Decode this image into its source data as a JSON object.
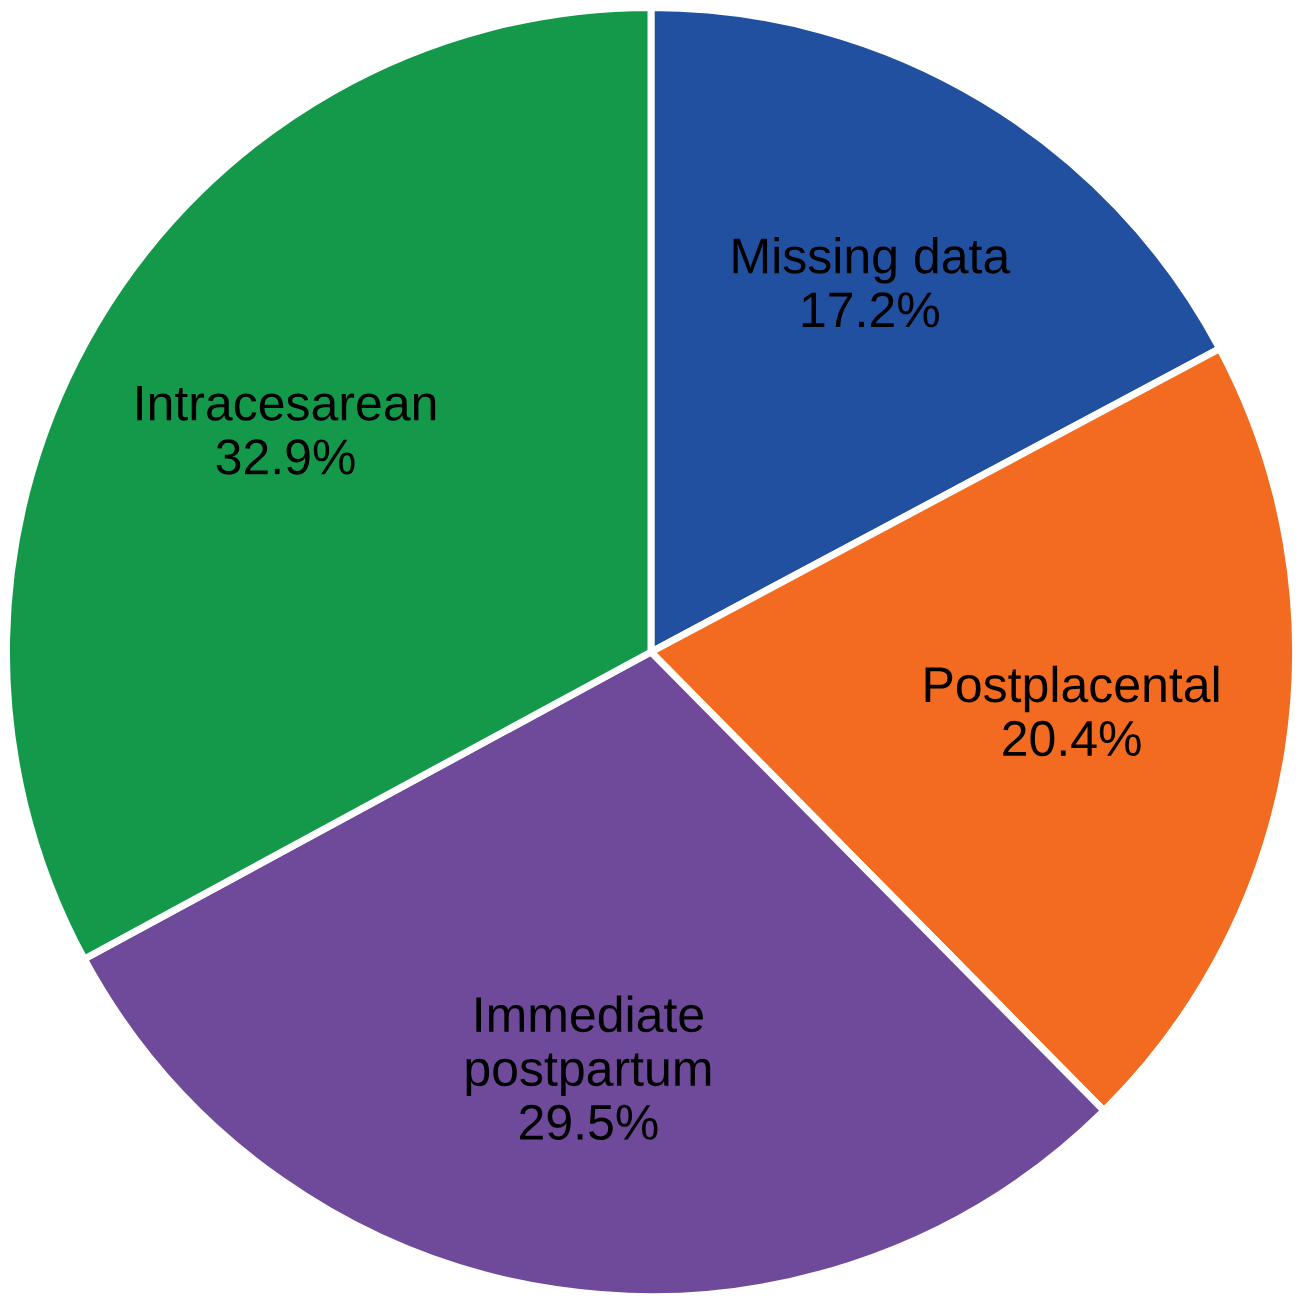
{
  "chart_data": {
    "type": "pie",
    "categories": [
      "Missing data",
      "Postplacental",
      "Immediate\npostpartum",
      "Intracesarean"
    ],
    "values": [
      17.2,
      20.4,
      29.5,
      32.9
    ],
    "colors": [
      "#2150a0",
      "#f26b21",
      "#6f4a9a",
      "#14994a"
    ],
    "value_labels": [
      "17.2%",
      "20.4%",
      "29.5%",
      "32.9%"
    ],
    "legend": false
  }
}
